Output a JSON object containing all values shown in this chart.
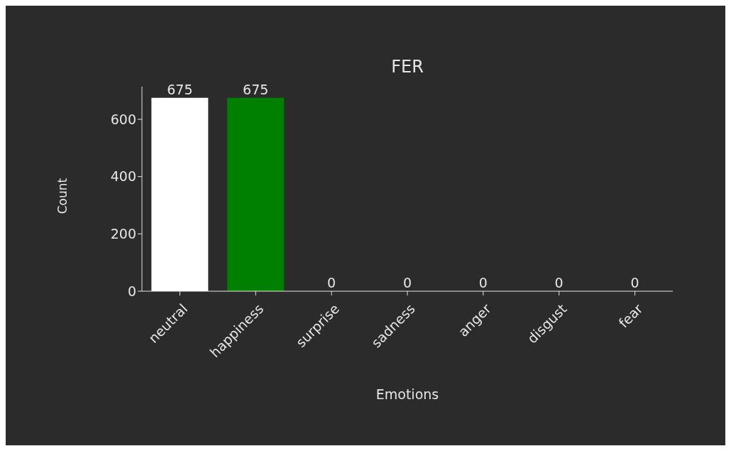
{
  "chart_data": {
    "type": "bar",
    "title": "FER",
    "xlabel": "Emotions",
    "ylabel": "Count",
    "categories": [
      "neutral",
      "happiness",
      "surprise",
      "sadness",
      "anger",
      "disgust",
      "fear"
    ],
    "values": [
      675,
      675,
      0,
      0,
      0,
      0,
      0
    ],
    "colors": [
      "#ffffff",
      "#008000",
      "#ffffff",
      "#ffffff",
      "#ffffff",
      "#ffffff",
      "#ffffff"
    ],
    "ylim": [
      0,
      714
    ],
    "yticks": [
      0,
      200,
      400,
      600
    ],
    "data_labels": true,
    "grid": false,
    "legend": false
  }
}
